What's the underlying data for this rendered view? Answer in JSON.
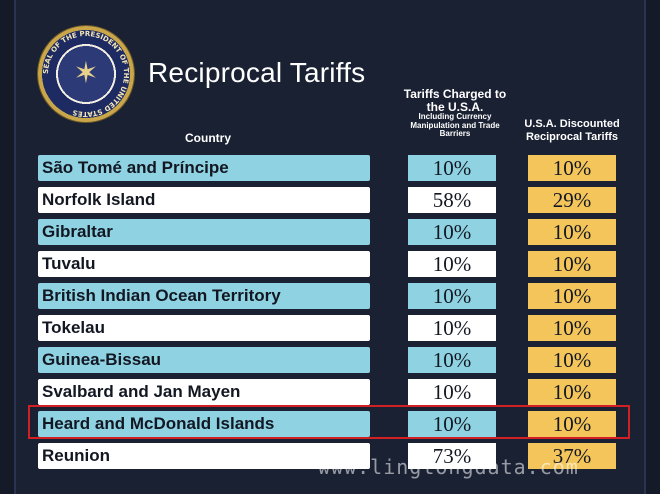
{
  "title": "Reciprocal Tariffs",
  "seal": {
    "text": "SEAL OF THE PRESIDENT OF THE UNITED STATES"
  },
  "headers": {
    "country": "Country",
    "charged_main": "Tariffs Charged to the U.S.A.",
    "charged_sub": "Including Currency Manipulation and Trade Barriers",
    "usa": "U.S.A. Discounted Reciprocal Tariffs"
  },
  "rows": [
    {
      "country": "São Tomé and Príncipe",
      "charged": "10%",
      "usa": "10%"
    },
    {
      "country": "Norfolk Island",
      "charged": "58%",
      "usa": "29%"
    },
    {
      "country": "Gibraltar",
      "charged": "10%",
      "usa": "10%"
    },
    {
      "country": "Tuvalu",
      "charged": "10%",
      "usa": "10%"
    },
    {
      "country": "British Indian Ocean Territory",
      "charged": "10%",
      "usa": "10%"
    },
    {
      "country": "Tokelau",
      "charged": "10%",
      "usa": "10%"
    },
    {
      "country": "Guinea-Bissau",
      "charged": "10%",
      "usa": "10%"
    },
    {
      "country": "Svalbard and Jan Mayen",
      "charged": "10%",
      "usa": "10%"
    },
    {
      "country": "Heard and McDonald Islands",
      "charged": "10%",
      "usa": "10%"
    },
    {
      "country": "Reunion",
      "charged": "73%",
      "usa": "37%"
    }
  ],
  "highlighted_row": "Heard and McDonald Islands",
  "watermark": "www.lingtongdata.com",
  "colors": {
    "background": "#1a2133",
    "row_blue": "#8fd3e3",
    "row_white": "#ffffff",
    "usa_yellow": "#f3c55a",
    "highlight_border": "#d21f24"
  }
}
